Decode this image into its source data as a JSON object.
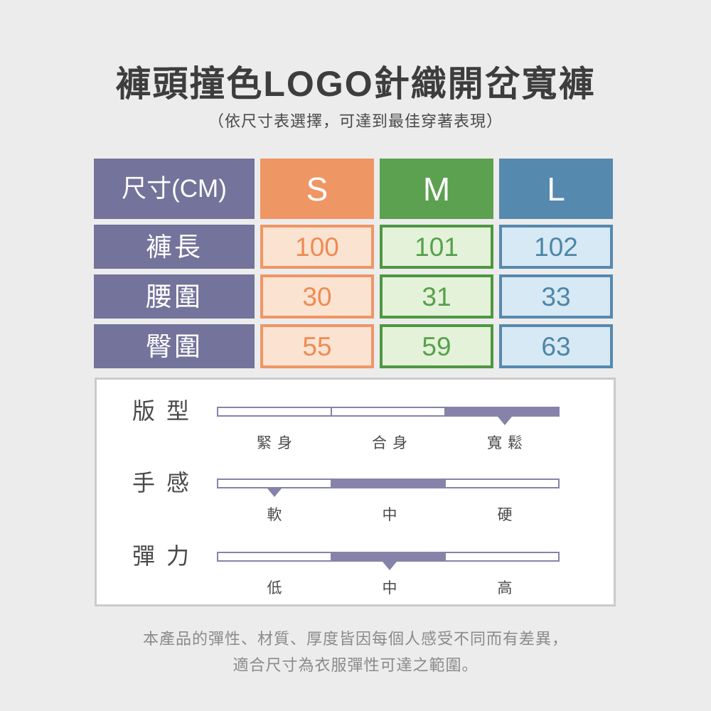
{
  "page": {
    "background_color": "#ECECEC"
  },
  "header": {
    "title": "褲頭撞色LOGO針織開岔寬褲",
    "subtitle": "（依尺寸表選擇，可達到最佳穿著表現）"
  },
  "size_table": {
    "corner_label": "尺寸(CM)",
    "header_color": "#73739B",
    "columns": [
      {
        "label": "S",
        "color": "#EF9665",
        "light_color": "#FBE3D2"
      },
      {
        "label": "M",
        "color": "#5CA14F",
        "light_color": "#E4F2DA"
      },
      {
        "label": "L",
        "color": "#5689AE",
        "light_color": "#D7E9F4"
      }
    ],
    "rows": [
      {
        "label": "褲長",
        "values": [
          "100",
          "101",
          "102"
        ]
      },
      {
        "label": "腰圍",
        "values": [
          "30",
          "31",
          "33"
        ]
      },
      {
        "label": "臀圍",
        "values": [
          "55",
          "59",
          "63"
        ]
      }
    ]
  },
  "attribute_panel": {
    "accent_color": "#8583AA",
    "panel_border_color": "#CBCBCB",
    "sliders": [
      {
        "name": "版型",
        "scale": [
          "緊身",
          "合身",
          "寬鬆"
        ],
        "filled_segment": 2,
        "marker_segment": 2,
        "marker_value": "寬鬆"
      },
      {
        "name": "手感",
        "scale": [
          "軟",
          "中",
          "硬"
        ],
        "filled_segment": 1,
        "marker_segment": 0,
        "marker_value": "軟"
      },
      {
        "name": "彈力",
        "scale": [
          "低",
          "中",
          "高"
        ],
        "filled_segment": 1,
        "marker_segment": 1,
        "marker_value": "中"
      }
    ]
  },
  "footer": {
    "line1": "本產品的彈性、材質、厚度皆因每個人感受不同而有差異，",
    "line2": "適合尺寸為衣服彈性可達之範圍。"
  },
  "chart_data": {
    "type": "table",
    "title": "褲頭撞色LOGO針織開岔寬褲",
    "subtitle": "（依尺寸表選擇，可達到最佳穿著表現）",
    "columns": [
      "尺寸(CM)",
      "S",
      "M",
      "L"
    ],
    "rows": [
      [
        "褲長",
        100,
        101,
        102
      ],
      [
        "腰圍",
        30,
        31,
        33
      ],
      [
        "臀圍",
        55,
        59,
        63
      ]
    ],
    "attributes": [
      {
        "name": "版型",
        "levels": [
          "緊身",
          "合身",
          "寬鬆"
        ],
        "marked_level": "寬鬆",
        "filled_level": "寬鬆"
      },
      {
        "name": "手感",
        "levels": [
          "軟",
          "中",
          "硬"
        ],
        "marked_level": "軟",
        "filled_level": "中"
      },
      {
        "name": "彈力",
        "levels": [
          "低",
          "中",
          "高"
        ],
        "marked_level": "中",
        "filled_level": "中"
      }
    ]
  }
}
